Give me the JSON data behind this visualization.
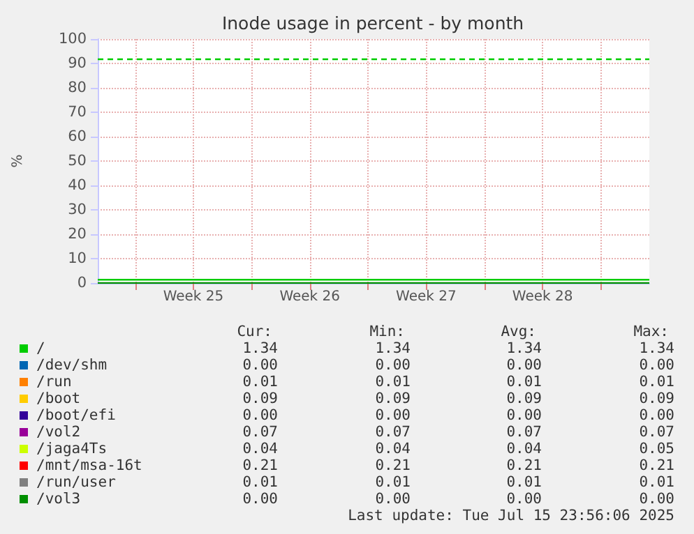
{
  "chart_data": {
    "type": "line",
    "title": "Inode usage in percent - by month",
    "ylabel": "%",
    "x": [
      "2025-06-13T18:00",
      "2025-07-16T22:00"
    ],
    "xlim": [
      "2025-06-13T18:00",
      "2025-07-16T22:00"
    ],
    "xticks": [
      {
        "value": "2025-06-16",
        "label": null
      },
      {
        "value": "2025-06-19T12:00",
        "label": "Week 25"
      },
      {
        "value": "2025-06-23",
        "label": null
      },
      {
        "value": "2025-06-26T12:00",
        "label": "Week 26"
      },
      {
        "value": "2025-06-30",
        "label": null
      },
      {
        "value": "2025-07-03T12:00",
        "label": "Week 27"
      },
      {
        "value": "2025-07-07",
        "label": null
      },
      {
        "value": "2025-07-10T12:00",
        "label": "Week 28"
      },
      {
        "value": "2025-07-14",
        "label": null
      }
    ],
    "ylim": [
      0,
      100
    ],
    "yticks": [
      0,
      10,
      20,
      30,
      40,
      50,
      60,
      70,
      80,
      90,
      100
    ],
    "grid": true,
    "legend": "bottom",
    "series": [
      {
        "name": "/",
        "color": "#00cc00",
        "values": [
          1.34,
          1.34
        ]
      },
      {
        "name": "/dev/shm",
        "color": "#0066b3",
        "values": [
          null,
          null
        ]
      },
      {
        "name": "/run",
        "color": "#ff8000",
        "values": [
          null,
          null
        ]
      },
      {
        "name": "/boot",
        "color": "#ffcc00",
        "values": [
          null,
          null
        ]
      },
      {
        "name": "/boot/efi",
        "color": "#330099",
        "values": [
          null,
          null
        ]
      },
      {
        "name": "/vol2",
        "color": "#990099",
        "values": [
          null,
          null
        ]
      },
      {
        "name": "/jaga4Ts",
        "color": "#ccff00",
        "values": [
          null,
          null
        ]
      },
      {
        "name": "/mnt/msa-16t",
        "color": "#ff0000",
        "values": [
          null,
          null
        ]
      },
      {
        "name": "/run/user",
        "color": "#808080",
        "values": [
          null,
          null
        ]
      },
      {
        "name": "/vol3",
        "color": "#008f00",
        "values": [
          0.0,
          0.0
        ]
      }
    ],
    "ref_lines": [
      {
        "axis": "y",
        "value": 92,
        "color": "#00cc00",
        "line_style": "dashed"
      }
    ],
    "annotations": [
      "Cur:",
      "Min:",
      "Avg:",
      "Max:",
      "1.34",
      "1.34",
      "1.34",
      "1.34",
      "0.00",
      "0.00",
      "0.00",
      "0.00",
      "0.01",
      "0.01",
      "0.01",
      "0.01",
      "0.09",
      "0.09",
      "0.09",
      "0.09",
      "0.00",
      "0.00",
      "0.00",
      "0.00",
      "0.07",
      "0.07",
      "0.07",
      "0.07",
      "0.04",
      "0.04",
      "0.04",
      "0.05",
      "0.21",
      "0.21",
      "0.21",
      "0.21",
      "0.01",
      "0.01",
      "0.01",
      "0.01",
      "0.00",
      "0.00",
      "0.00",
      "0.00",
      "Last update: Tue Jul 15 23:56:06 2025"
    ]
  }
}
